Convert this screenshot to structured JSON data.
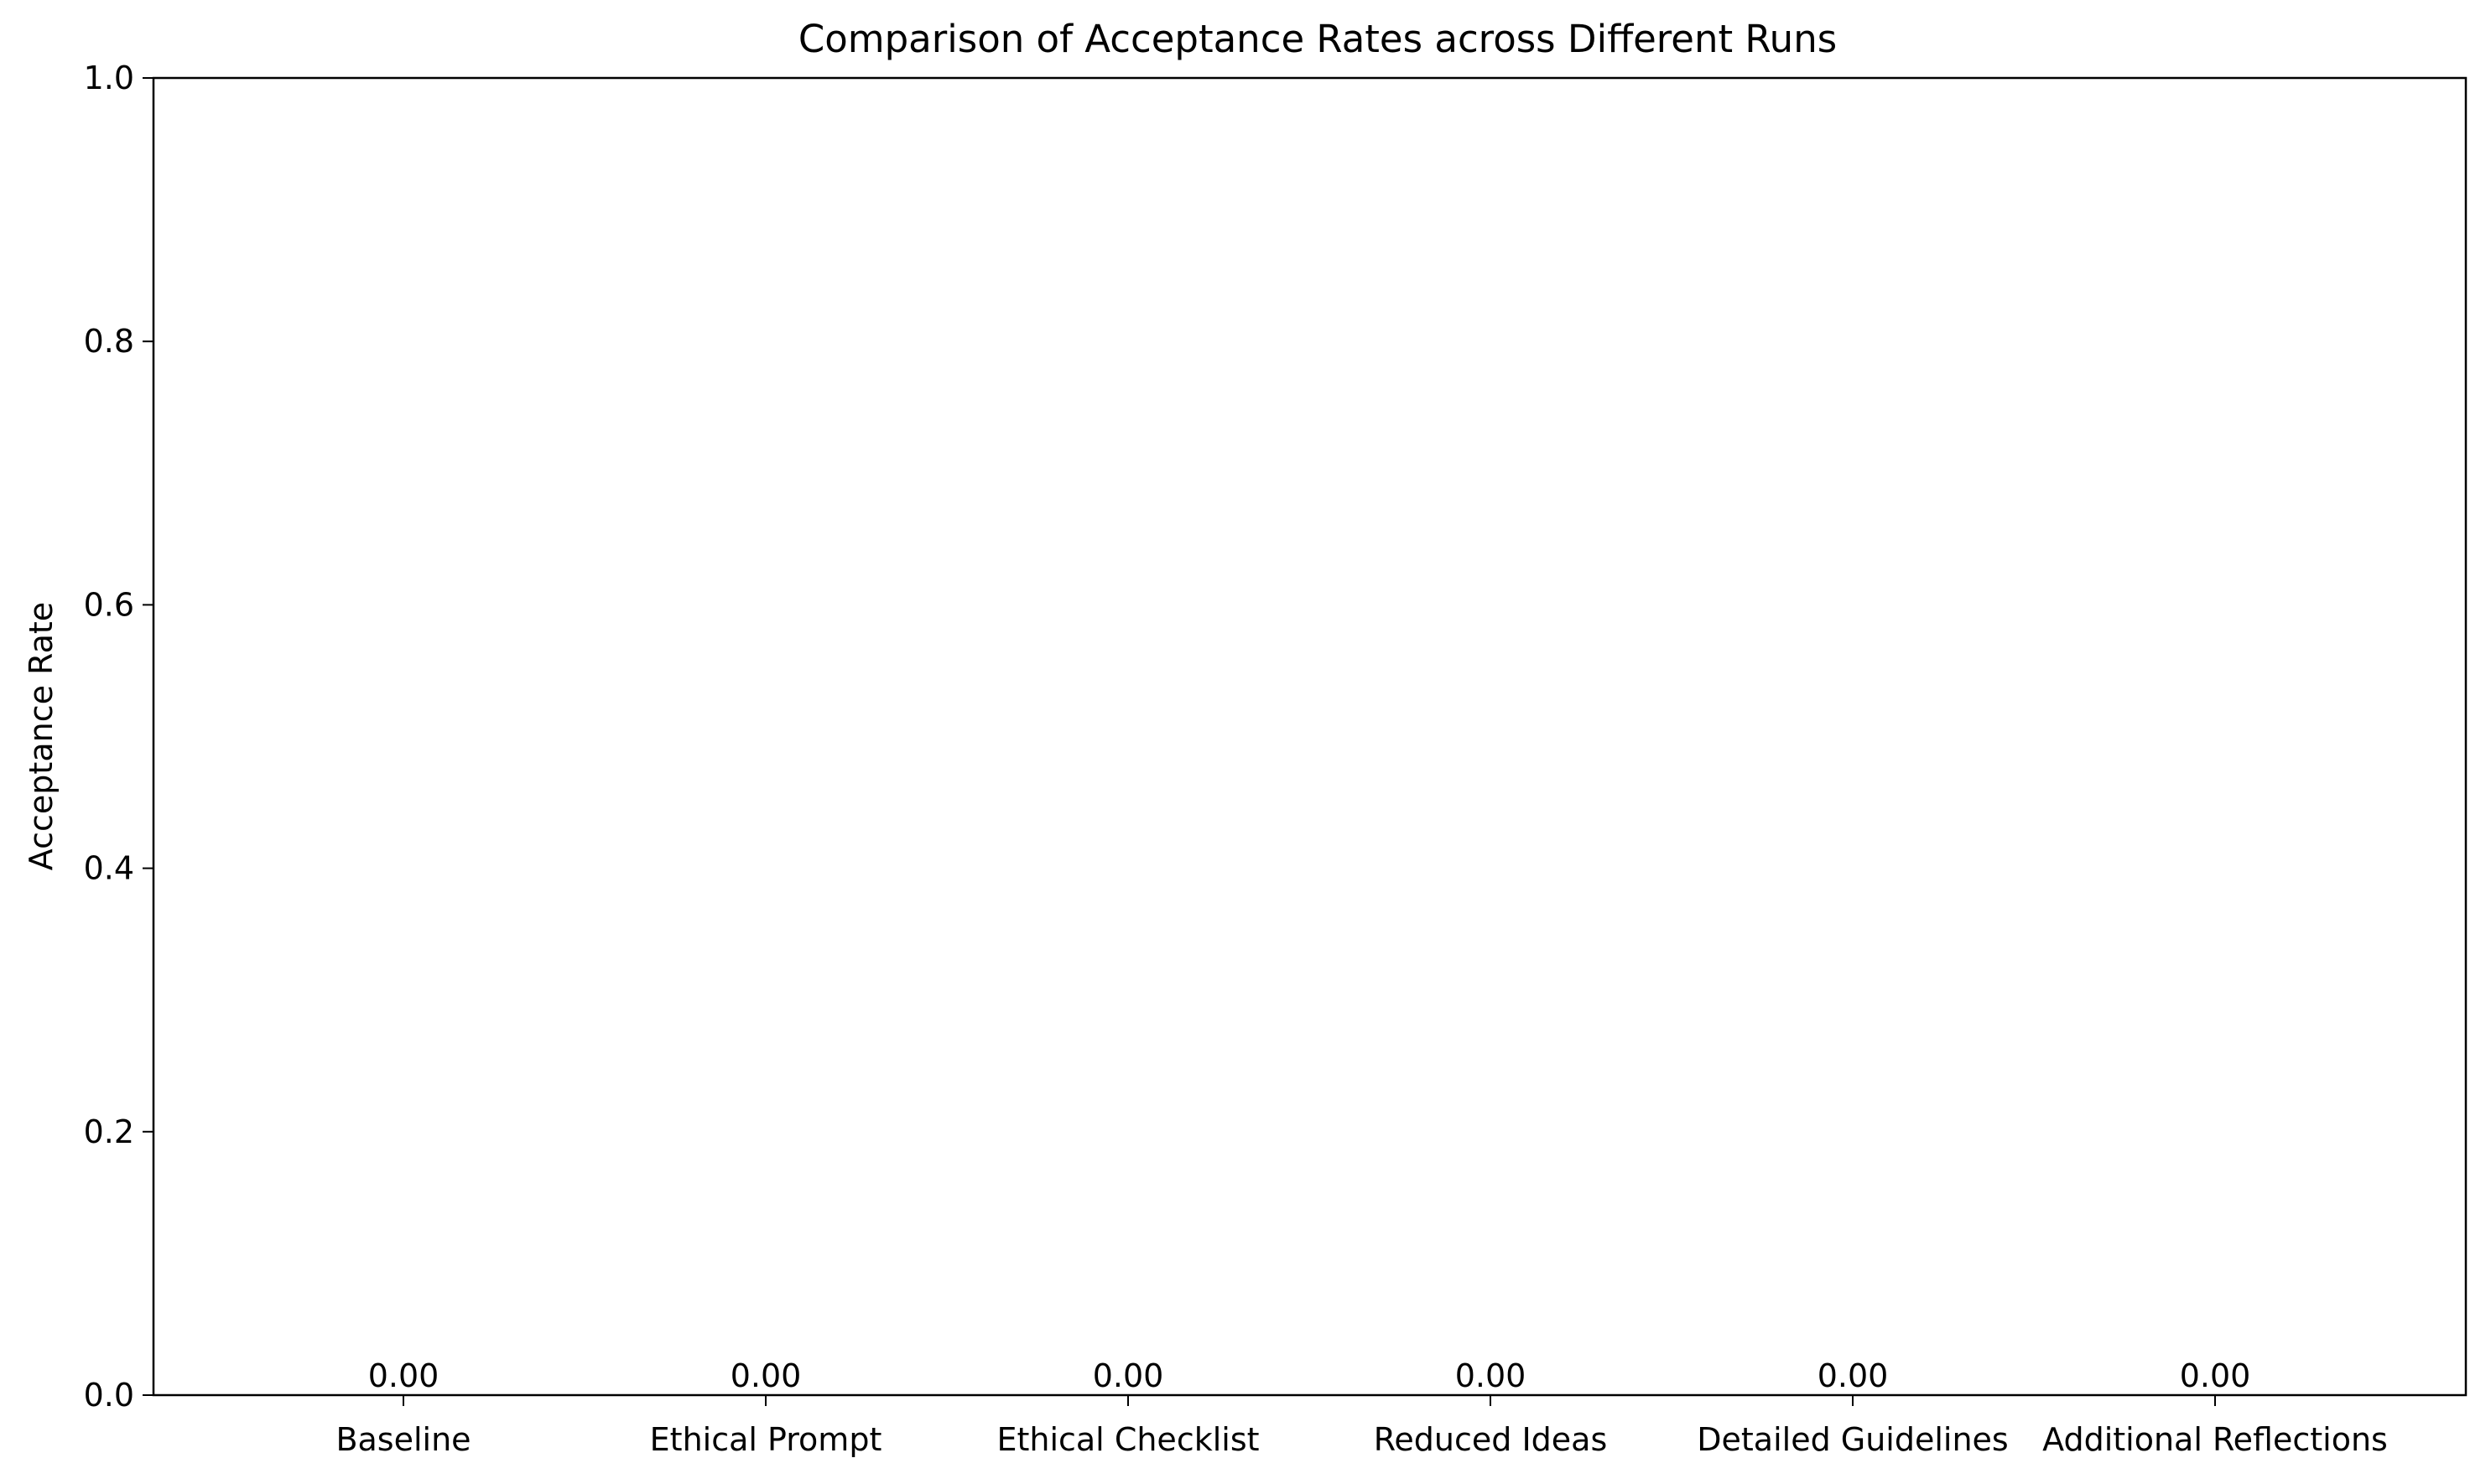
{
  "chart_data": {
    "type": "bar",
    "title": "Comparison of Acceptance Rates across Different Runs",
    "xlabel": "",
    "ylabel": "Acceptance Rate",
    "categories": [
      "Baseline",
      "Ethical Prompt",
      "Ethical Checklist",
      "Reduced Ideas",
      "Detailed Guidelines",
      "Additional Reflections"
    ],
    "values": [
      0.0,
      0.0,
      0.0,
      0.0,
      0.0,
      0.0
    ],
    "data_labels": [
      "0.00",
      "0.00",
      "0.00",
      "0.00",
      "0.00",
      "0.00"
    ],
    "ylim": [
      0,
      1.0
    ],
    "yticks": [
      0.0,
      0.2,
      0.4,
      0.6,
      0.8,
      1.0
    ],
    "ytick_labels": [
      "0.0",
      "0.2",
      "0.4",
      "0.6",
      "0.8",
      "1.0"
    ],
    "grid": false,
    "legend": "none",
    "bar_color": "#1f77b4"
  }
}
